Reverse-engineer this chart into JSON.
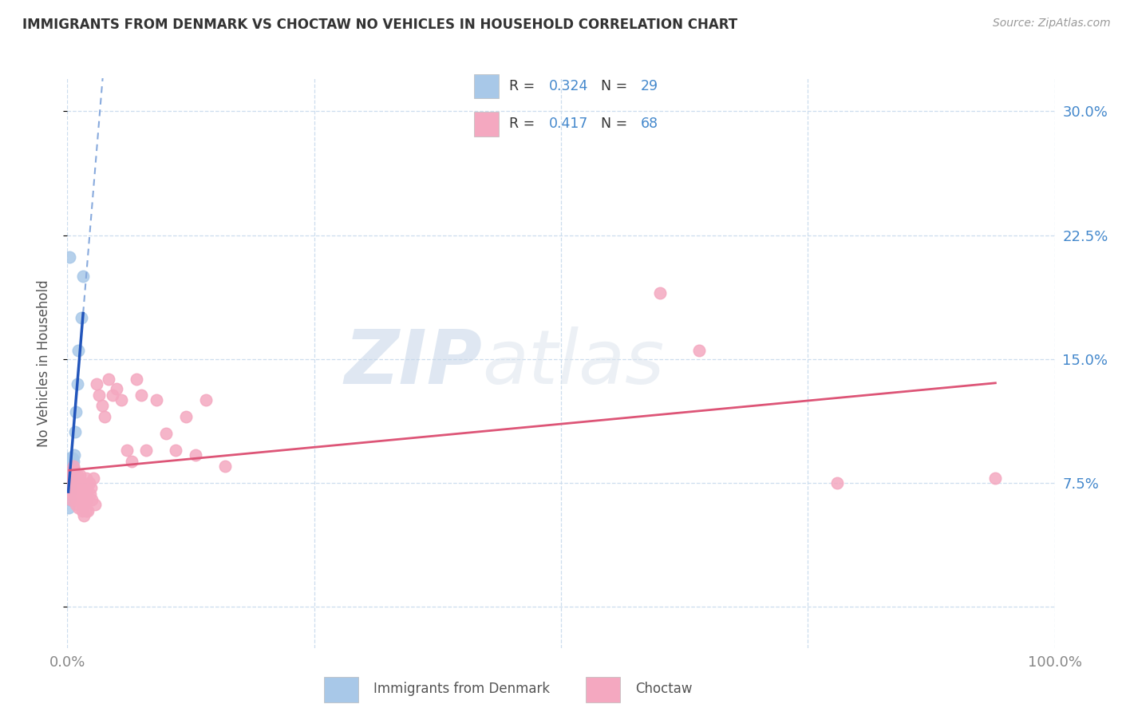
{
  "title": "IMMIGRANTS FROM DENMARK VS CHOCTAW NO VEHICLES IN HOUSEHOLD CORRELATION CHART",
  "source": "Source: ZipAtlas.com",
  "ylabel": "No Vehicles in Household",
  "xlim": [
    0.0,
    1.0
  ],
  "ylim": [
    -0.025,
    0.32
  ],
  "x_ticks": [
    0.0,
    1.0
  ],
  "x_tick_labels": [
    "0.0%",
    "100.0%"
  ],
  "y_ticks": [
    0.0,
    0.075,
    0.15,
    0.225,
    0.3
  ],
  "y_tick_labels_right": [
    "",
    "7.5%",
    "15.0%",
    "22.5%",
    "30.0%"
  ],
  "color_blue": "#a8c8e8",
  "color_pink": "#f4a8c0",
  "color_blue_line": "#2255bb",
  "color_pink_line": "#dd5577",
  "color_blue_dashed": "#88aadd",
  "color_text_blue": "#4488cc",
  "color_title": "#333333",
  "color_grid": "#ccddee",
  "watermark_zip": "ZIP",
  "watermark_atlas": "atlas",
  "denmark_x": [
    0.001,
    0.001,
    0.002,
    0.002,
    0.002,
    0.002,
    0.002,
    0.002,
    0.003,
    0.003,
    0.003,
    0.003,
    0.003,
    0.003,
    0.004,
    0.004,
    0.005,
    0.005,
    0.005,
    0.006,
    0.006,
    0.007,
    0.008,
    0.009,
    0.01,
    0.011,
    0.014,
    0.016,
    0.002
  ],
  "denmark_y": [
    0.068,
    0.06,
    0.09,
    0.082,
    0.076,
    0.073,
    0.07,
    0.065,
    0.09,
    0.085,
    0.082,
    0.078,
    0.074,
    0.07,
    0.082,
    0.078,
    0.09,
    0.086,
    0.082,
    0.088,
    0.084,
    0.092,
    0.106,
    0.118,
    0.135,
    0.155,
    0.175,
    0.2,
    0.212
  ],
  "choctaw_x": [
    0.002,
    0.003,
    0.003,
    0.004,
    0.004,
    0.005,
    0.005,
    0.006,
    0.006,
    0.007,
    0.007,
    0.008,
    0.008,
    0.009,
    0.009,
    0.01,
    0.01,
    0.011,
    0.011,
    0.012,
    0.012,
    0.013,
    0.013,
    0.014,
    0.014,
    0.015,
    0.015,
    0.016,
    0.016,
    0.017,
    0.017,
    0.018,
    0.018,
    0.019,
    0.019,
    0.02,
    0.02,
    0.021,
    0.022,
    0.023,
    0.024,
    0.025,
    0.026,
    0.028,
    0.03,
    0.032,
    0.035,
    0.038,
    0.042,
    0.046,
    0.05,
    0.055,
    0.06,
    0.065,
    0.07,
    0.075,
    0.08,
    0.09,
    0.1,
    0.11,
    0.12,
    0.13,
    0.14,
    0.16,
    0.6,
    0.64,
    0.78,
    0.94
  ],
  "choctaw_y": [
    0.075,
    0.07,
    0.082,
    0.065,
    0.078,
    0.068,
    0.08,
    0.072,
    0.085,
    0.068,
    0.082,
    0.065,
    0.078,
    0.062,
    0.075,
    0.068,
    0.08,
    0.072,
    0.06,
    0.065,
    0.075,
    0.068,
    0.08,
    0.065,
    0.072,
    0.058,
    0.07,
    0.062,
    0.075,
    0.068,
    0.055,
    0.072,
    0.065,
    0.058,
    0.078,
    0.065,
    0.072,
    0.058,
    0.075,
    0.068,
    0.072,
    0.065,
    0.078,
    0.062,
    0.135,
    0.128,
    0.122,
    0.115,
    0.138,
    0.128,
    0.132,
    0.125,
    0.095,
    0.088,
    0.138,
    0.128,
    0.095,
    0.125,
    0.105,
    0.095,
    0.115,
    0.092,
    0.125,
    0.085,
    0.19,
    0.155,
    0.075,
    0.078
  ]
}
